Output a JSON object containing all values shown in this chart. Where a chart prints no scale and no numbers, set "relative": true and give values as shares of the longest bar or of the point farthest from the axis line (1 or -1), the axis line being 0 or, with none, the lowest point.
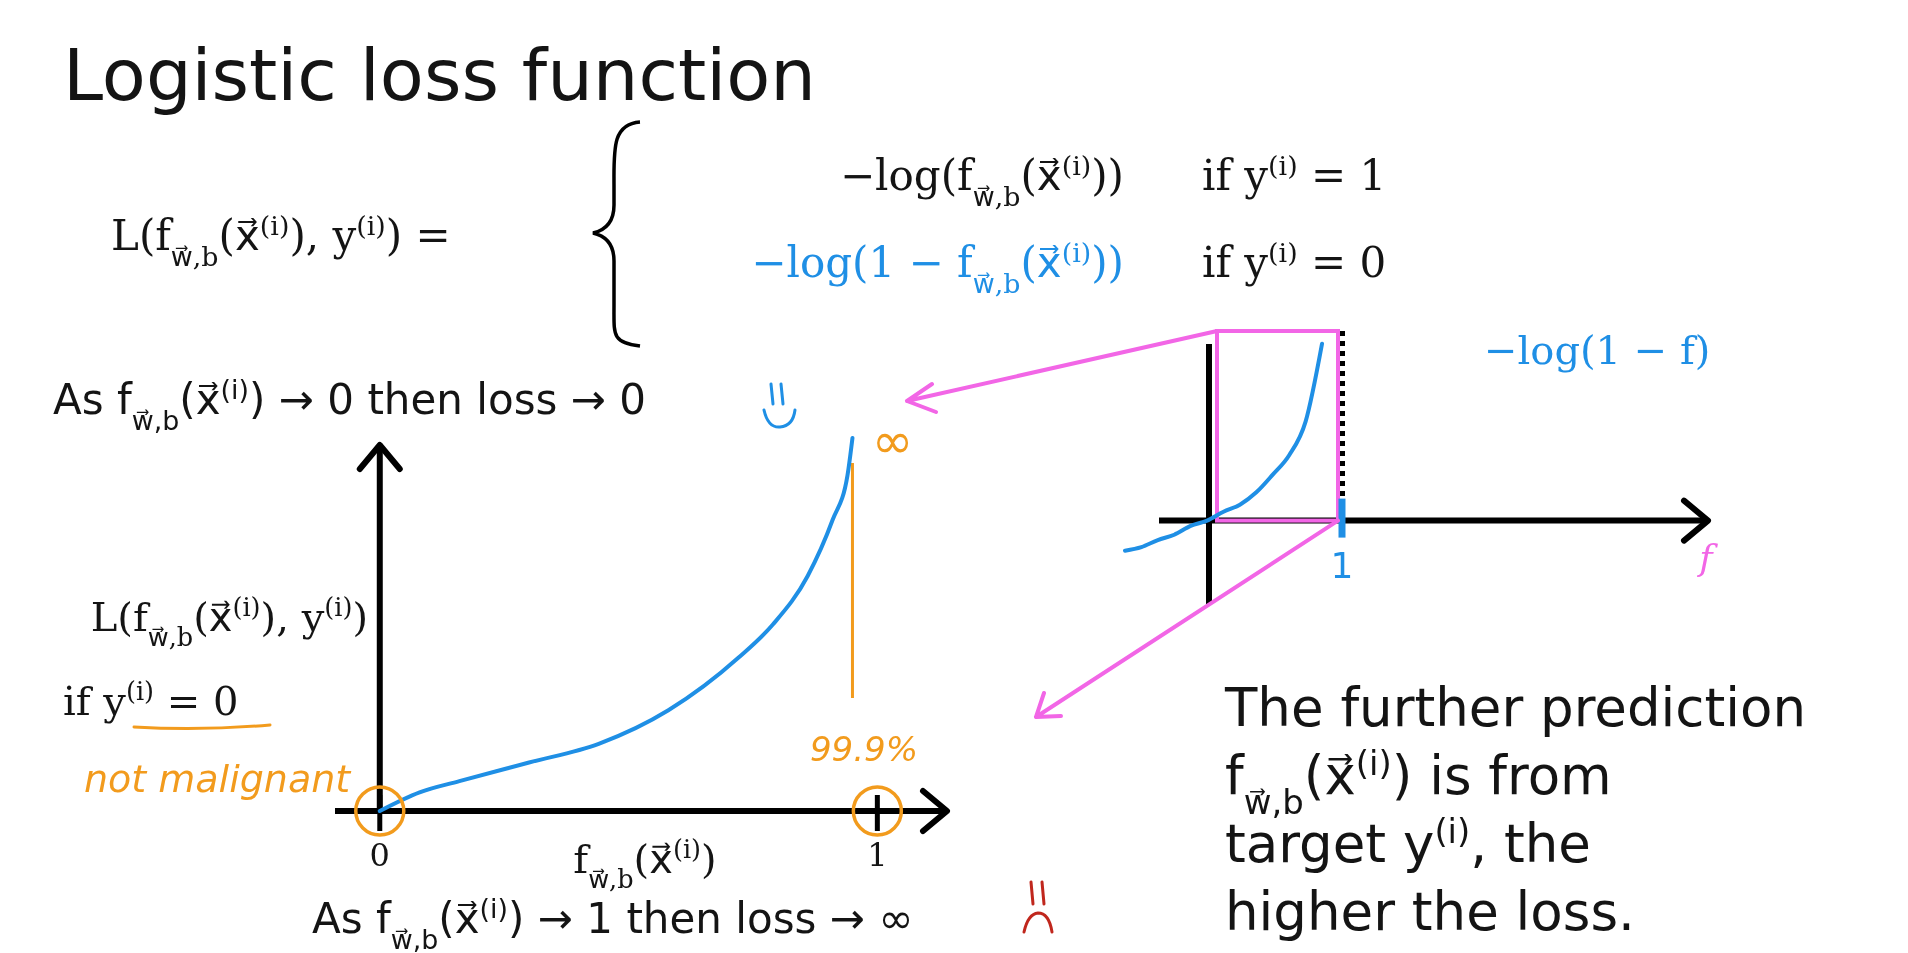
{
  "chart_data": [
    {
      "type": "line",
      "title": "Logistic loss function",
      "xlabel": "f$_{w⃗,b}$(x⃗$^{(i)}$)",
      "ylabel": "L(f$_{w⃗,b}$(x⃗$^{(i)}$), y$^{(i)}$)",
      "relative": true,
      "x": [
        0,
        0.08,
        0.16,
        0.3,
        0.44,
        0.58,
        0.72,
        0.79,
        0.86,
        0.91,
        0.94,
        0.95
      ],
      "series": [
        {
          "color": "#1f8fe5",
          "values": [
            0,
            0.05,
            0.08,
            0.13,
            0.18,
            0.27,
            0.41,
            0.5,
            0.63,
            0.78,
            0.9,
            1
          ]
        }
      ],
      "xlim": [
        -0.09,
        1.14
      ],
      "xticks": [
        0,
        1
      ],
      "ref_lines": [
        {
          "axis": "x",
          "value": 0.95,
          "color": "#f29b1d"
        }
      ],
      "annotations": [
        "L(f$_{w⃗,b}$(x⃗$^{(i)}$), y$^{(i)}$) =",
        "−log(f$_{w⃗,b}$(x⃗$^{(i)}$))",
        "if y$^{(i)}$ = 1",
        "−log(1 − f$_{w⃗,b}$(x⃗$^{(i)}$))",
        "if y$^{(i)}$ = 0",
        "As f$_{w⃗,b}$(x⃗$^{(i)}$) → 0 then loss → 0",
        "if y$^{(i)}$ = 0",
        "not malignant",
        {
          "text": "∞",
          "x": 0.95,
          "y": 1
        },
        "As f$_{w⃗,b}$(x⃗$^{(i)}$) → 1 then loss → ∞",
        "99.9%"
      ]
    },
    {
      "type": "line",
      "relative": true,
      "categories": [
        null,
        null,
        null,
        null,
        null,
        null,
        null,
        null,
        null,
        null,
        null,
        null,
        null
      ],
      "series": [
        {
          "name": "−log(1 − f)",
          "color": "#1f8fe5",
          "values": [
            -0.17,
            -0.15,
            -0.11,
            -0.08,
            -0.03,
            0,
            0.05,
            0.09,
            0.16,
            0.26,
            0.37,
            0.56,
            1
          ]
        }
      ],
      "annotations": [
        "1",
        "The further prediction\nf$_{w⃗,b}$(x⃗$^{(i)}$) is from\ntarget y$^{(i)}$, the\nhigher the loss.",
        "f"
      ]
    }
  ]
}
